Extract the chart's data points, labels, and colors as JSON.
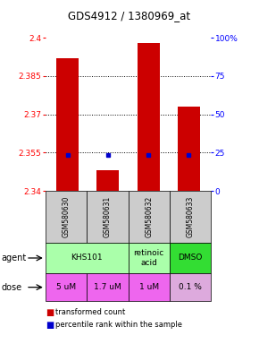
{
  "title": "GDS4912 / 1380969_at",
  "samples": [
    "GSM580630",
    "GSM580631",
    "GSM580632",
    "GSM580633"
  ],
  "bar_values": [
    2.392,
    2.348,
    2.398,
    2.373
  ],
  "percentile_values": [
    2.354,
    2.354,
    2.354,
    2.354
  ],
  "ylim_left": [
    2.34,
    2.4
  ],
  "yticks_left": [
    2.34,
    2.355,
    2.37,
    2.385,
    2.4
  ],
  "ytick_labels_left": [
    "2.34",
    "2.355",
    "2.37",
    "2.385",
    "2.4"
  ],
  "ytick_labels_right": [
    "0",
    "25",
    "50",
    "75",
    "100%"
  ],
  "hlines": [
    2.355,
    2.37,
    2.385
  ],
  "bar_color": "#cc0000",
  "percentile_color": "#0000cc",
  "agent_groups": [
    [
      0,
      2,
      "KHS101",
      "#aaffaa"
    ],
    [
      2,
      3,
      "retinoic\nacid",
      "#aaffaa"
    ],
    [
      3,
      4,
      "DMSO",
      "#33dd33"
    ]
  ],
  "dose_row": [
    "5 uM",
    "1.7 uM",
    "1 uM",
    "0.1 %"
  ],
  "dose_colors": [
    "#ee66ee",
    "#ee66ee",
    "#ee66ee",
    "#ddaadd"
  ],
  "sample_bg": "#cccccc",
  "legend_red": "transformed count",
  "legend_blue": "percentile rank within the sample"
}
